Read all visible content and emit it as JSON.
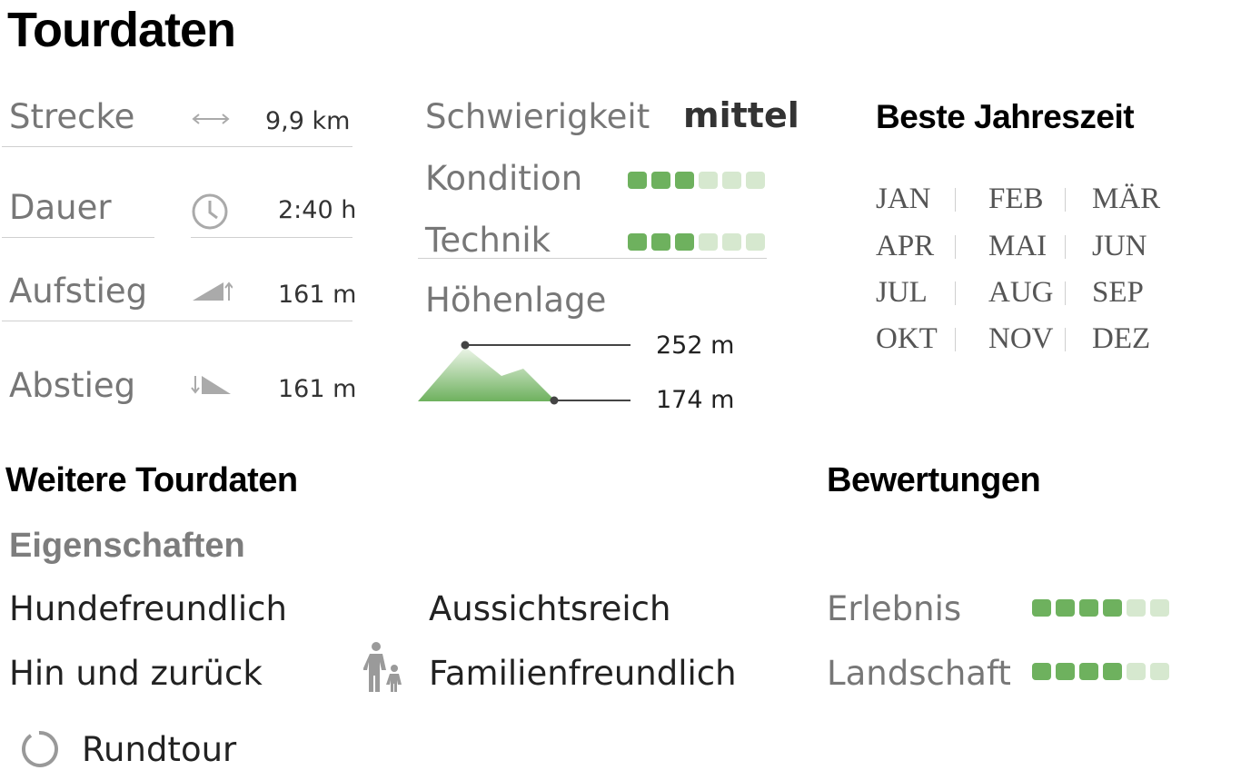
{
  "title": "Tourdaten",
  "stats": {
    "distance": {
      "label": "Strecke",
      "icon": "double-arrow-icon",
      "value": "9,9 km"
    },
    "duration": {
      "label": "Dauer",
      "icon": "clock-icon",
      "value": "2:40 h"
    },
    "ascent": {
      "label": "Aufstieg",
      "icon": "ascent-icon",
      "value": "161 m"
    },
    "descent": {
      "label": "Abstieg",
      "icon": "descent-icon",
      "value": "161 m"
    }
  },
  "difficulty": {
    "label": "Schwierigkeit",
    "value": "mittel",
    "condition": {
      "label": "Kondition",
      "rating": 3,
      "max": 6
    },
    "technique": {
      "label": "Technik",
      "rating": 3,
      "max": 6
    }
  },
  "altitude": {
    "label": "Höhenlage",
    "max": "252 m",
    "min": "174 m",
    "icon": "mountain-icon"
  },
  "season": {
    "title": "Beste Jahreszeit",
    "months": [
      "JAN",
      "FEB",
      "MÄR",
      "APR",
      "MAI",
      "JUN",
      "JUL",
      "AUG",
      "SEP",
      "OKT",
      "NOV",
      "DEZ"
    ]
  },
  "more": {
    "title": "Weitere Tourdaten",
    "properties_title": "Eigenschaften",
    "properties": [
      {
        "label": "Hundefreundlich"
      },
      {
        "label": "Aussichtsreich"
      },
      {
        "label": "Hin und zurück"
      },
      {
        "label": "Familienfreundlich",
        "icon": "family-icon"
      },
      {
        "label": "Rundtour",
        "icon": "loop-icon"
      }
    ]
  },
  "ratings": {
    "title": "Bewertungen",
    "items": [
      {
        "label": "Erlebnis",
        "rating": 4,
        "max": 6
      },
      {
        "label": "Landschaft",
        "rating": 4,
        "max": 6
      }
    ]
  },
  "colors": {
    "accent": "#6eb15e",
    "accent_light": "#d6e8cf",
    "muted_text": "#777777"
  }
}
